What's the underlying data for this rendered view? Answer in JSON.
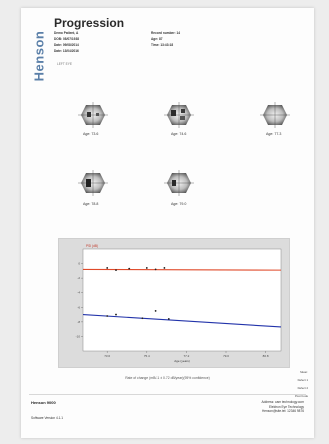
{
  "brand": "Henson",
  "title": "Progression",
  "patient": {
    "name": "Demo Patient, A",
    "dob": "DOB: 08/07/1938",
    "date1": "Date: 09/08/2014",
    "date2": "Date: 13/04/2016",
    "record": "Record number: 14",
    "age": "Age: 87",
    "time": "Time: 13:43:18"
  },
  "eye_label": "LEFT EYE",
  "fields": [
    {
      "age": "Age: 73.6"
    },
    {
      "age": "Age: 74.6"
    },
    {
      "age": "Age: 77.3"
    },
    {
      "age": "Age: 78.8"
    },
    {
      "age": "Age: 79.0"
    }
  ],
  "chart_data": {
    "type": "scatter",
    "ylabel": "",
    "xlabel": "Age (years)",
    "legend_top": "PSI (dB)",
    "x_ticks": [
      "73.6",
      "75.4",
      "77.2",
      "79.0",
      "80.8"
    ],
    "xlim": [
      72.5,
      81.5
    ],
    "ylim": [
      -12,
      2
    ],
    "y_ticks": [
      "0",
      "-2",
      "-4",
      "-6",
      "-8",
      "-10"
    ],
    "series": [
      {
        "color": "#e04a2a",
        "trend": [
          [
            72.5,
            -0.8
          ],
          [
            81.5,
            -0.9
          ]
        ],
        "points": [
          [
            73.6,
            -0.6
          ],
          [
            74.0,
            -0.9
          ],
          [
            74.6,
            -0.7
          ],
          [
            75.4,
            -0.6
          ],
          [
            75.8,
            -0.8
          ],
          [
            76.2,
            -0.6
          ]
        ]
      },
      {
        "color": "#2233aa",
        "trend": [
          [
            72.5,
            -7.0
          ],
          [
            81.5,
            -8.7
          ]
        ],
        "points": [
          [
            73.6,
            -7.2
          ],
          [
            74.0,
            -7.0
          ],
          [
            75.2,
            -7.5
          ],
          [
            75.8,
            -6.5
          ],
          [
            76.4,
            -7.6
          ]
        ]
      }
    ]
  },
  "caption": "Rate of change (mB/-1 ± 0.72 dB/year)(95% confidence)",
  "legend": [
    "Mean:",
    "Defect 1",
    "Defect 2",
    "Post Code"
  ],
  "footer": {
    "product": "Henson 9000",
    "software": "Software Version 4.1.1",
    "contact": [
      "Address: cam technology.com",
      "Elektron Eye Technology",
      "Henson@site.tel: 12346 9876"
    ]
  }
}
